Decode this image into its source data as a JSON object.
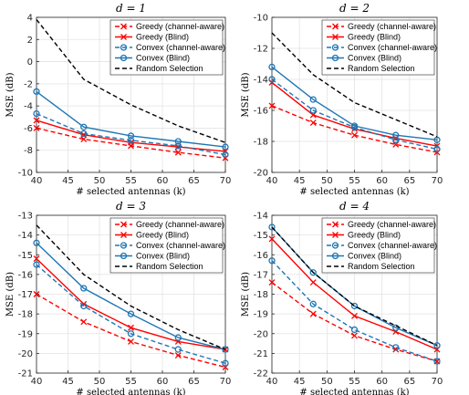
{
  "chart_data": [
    {
      "type": "line",
      "title": "d = 1",
      "xlabel": "# selected antennas (k)",
      "ylabel": "MSE (dB)",
      "xlim": [
        40,
        70
      ],
      "ylim": [
        -10,
        4
      ],
      "xticks": [
        40,
        45,
        50,
        55,
        60,
        65,
        70
      ],
      "yticks": [
        -10,
        -8,
        -6,
        -4,
        -2,
        0,
        2,
        4
      ],
      "grid": true,
      "legend_position": "top-right",
      "x": [
        40,
        47.5,
        55,
        62.5,
        70
      ],
      "series": [
        {
          "name": "Greedy (channel-aware)",
          "color": "#ff0000",
          "dash": "dashed",
          "marker": "x",
          "values": [
            -6.0,
            -7.0,
            -7.6,
            -8.2,
            -8.7
          ]
        },
        {
          "name": "Greedy (Blind)",
          "color": "#ff0000",
          "dash": "solid",
          "marker": "x",
          "values": [
            -5.3,
            -6.6,
            -7.3,
            -7.7,
            -8.1
          ]
        },
        {
          "name": "Convex (channel-aware)",
          "color": "#1f77b4",
          "dash": "dashed",
          "marker": "o",
          "values": [
            -4.7,
            -6.5,
            -7.1,
            -7.6,
            -8.4
          ]
        },
        {
          "name": "Convex (Blind)",
          "color": "#1f77b4",
          "dash": "solid",
          "marker": "o",
          "values": [
            -2.7,
            -5.9,
            -6.7,
            -7.2,
            -7.7
          ]
        },
        {
          "name": "Random Selection",
          "color": "#000000",
          "dash": "dashed",
          "marker": "none",
          "values": [
            3.8,
            -1.6,
            -3.9,
            -5.8,
            -7.3
          ]
        }
      ]
    },
    {
      "type": "line",
      "title": "d = 2",
      "xlabel": "# selected antennas (k)",
      "ylabel": "MSE (dB)",
      "xlim": [
        40,
        70
      ],
      "ylim": [
        -20,
        -10
      ],
      "xticks": [
        40,
        45,
        50,
        55,
        60,
        65,
        70
      ],
      "yticks": [
        -20,
        -18,
        -16,
        -14,
        -12,
        -10
      ],
      "grid": true,
      "legend_position": "top-right",
      "x": [
        40,
        47.5,
        55,
        62.5,
        70
      ],
      "series": [
        {
          "name": "Greedy (channel-aware)",
          "color": "#ff0000",
          "dash": "dashed",
          "marker": "x",
          "values": [
            -15.7,
            -16.8,
            -17.6,
            -18.2,
            -18.7
          ]
        },
        {
          "name": "Greedy (Blind)",
          "color": "#ff0000",
          "dash": "solid",
          "marker": "x",
          "values": [
            -14.2,
            -16.3,
            -17.2,
            -17.8,
            -18.3
          ]
        },
        {
          "name": "Convex (channel-aware)",
          "color": "#1f77b4",
          "dash": "dashed",
          "marker": "o",
          "values": [
            -14.0,
            -16.0,
            -17.1,
            -17.9,
            -18.5
          ]
        },
        {
          "name": "Convex (Blind)",
          "color": "#1f77b4",
          "dash": "solid",
          "marker": "o",
          "values": [
            -13.2,
            -15.3,
            -17.0,
            -17.6,
            -17.9
          ]
        },
        {
          "name": "Random Selection",
          "color": "#000000",
          "dash": "dashed",
          "marker": "none",
          "values": [
            -11.0,
            -13.7,
            -15.5,
            -16.6,
            -17.7
          ]
        }
      ]
    },
    {
      "type": "line",
      "title": "d = 3",
      "xlabel": "# selected antennas (k)",
      "ylabel": "MSE (dB)",
      "xlim": [
        40,
        70
      ],
      "ylim": [
        -21,
        -13
      ],
      "xticks": [
        40,
        45,
        50,
        55,
        60,
        65,
        70
      ],
      "yticks": [
        -21,
        -20,
        -19,
        -18,
        -17,
        -16,
        -15,
        -14,
        -13
      ],
      "grid": true,
      "legend_position": "top-right",
      "x": [
        40,
        47.5,
        55,
        62.5,
        70
      ],
      "series": [
        {
          "name": "Greedy (channel-aware)",
          "color": "#ff0000",
          "dash": "dashed",
          "marker": "x",
          "values": [
            -17.0,
            -18.4,
            -19.4,
            -20.1,
            -20.7
          ]
        },
        {
          "name": "Greedy (Blind)",
          "color": "#ff0000",
          "dash": "solid",
          "marker": "x",
          "values": [
            -15.2,
            -17.5,
            -18.7,
            -19.4,
            -19.8
          ]
        },
        {
          "name": "Convex (channel-aware)",
          "color": "#1f77b4",
          "dash": "dashed",
          "marker": "o",
          "values": [
            -15.5,
            -17.6,
            -19.0,
            -19.8,
            -20.5
          ]
        },
        {
          "name": "Convex (Blind)",
          "color": "#1f77b4",
          "dash": "solid",
          "marker": "o",
          "values": [
            -14.4,
            -16.7,
            -18.0,
            -19.2,
            -19.8
          ]
        },
        {
          "name": "Random Selection",
          "color": "#000000",
          "dash": "dashed",
          "marker": "none",
          "values": [
            -13.5,
            -16.0,
            -17.6,
            -18.8,
            -19.8
          ]
        }
      ]
    },
    {
      "type": "line",
      "title": "d = 4",
      "xlabel": "# selected antennas (k)",
      "ylabel": "MSE (dB)",
      "xlim": [
        40,
        70
      ],
      "ylim": [
        -22,
        -14
      ],
      "xticks": [
        40,
        45,
        50,
        55,
        60,
        65,
        70
      ],
      "yticks": [
        -22,
        -21,
        -20,
        -19,
        -18,
        -17,
        -16,
        -15,
        -14
      ],
      "grid": true,
      "legend_position": "top-right",
      "x": [
        40,
        47.5,
        55,
        62.5,
        70
      ],
      "series": [
        {
          "name": "Greedy (channel-aware)",
          "color": "#ff0000",
          "dash": "dashed",
          "marker": "x",
          "values": [
            -17.4,
            -19.0,
            -20.1,
            -20.8,
            -21.4
          ]
        },
        {
          "name": "Greedy (Blind)",
          "color": "#ff0000",
          "dash": "solid",
          "marker": "x",
          "values": [
            -15.2,
            -17.4,
            -19.1,
            -19.9,
            -20.8
          ]
        },
        {
          "name": "Convex (channel-aware)",
          "color": "#1f77b4",
          "dash": "dashed",
          "marker": "o",
          "values": [
            -16.3,
            -18.5,
            -19.8,
            -20.7,
            -21.4
          ]
        },
        {
          "name": "Convex (Blind)",
          "color": "#1f77b4",
          "dash": "solid",
          "marker": "o",
          "values": [
            -14.6,
            -16.9,
            -18.6,
            -19.7,
            -20.6
          ]
        },
        {
          "name": "Random Selection",
          "color": "#000000",
          "dash": "dashed",
          "marker": "none",
          "values": [
            -14.6,
            -16.9,
            -18.6,
            -19.6,
            -20.6
          ]
        }
      ]
    }
  ]
}
